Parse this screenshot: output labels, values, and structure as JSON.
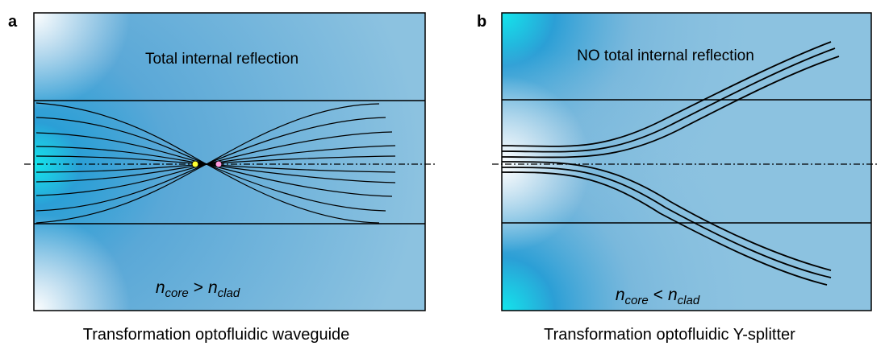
{
  "panels": [
    {
      "label": "a",
      "annotation": "Total internal reflection",
      "relation": {
        "symbol_left": "n",
        "subscript_left": "core",
        "operator": ">",
        "symbol_right": "n",
        "subscript_right": "clad"
      },
      "caption": "Transformation optofluidic waveguide"
    },
    {
      "label": "b",
      "annotation": "NO total internal reflection",
      "relation": {
        "symbol_left": "n",
        "subscript_left": "core",
        "operator": "<",
        "symbol_right": "n",
        "subscript_right": "clad"
      },
      "caption": "Transformation optofluidic Y-splitter"
    }
  ]
}
